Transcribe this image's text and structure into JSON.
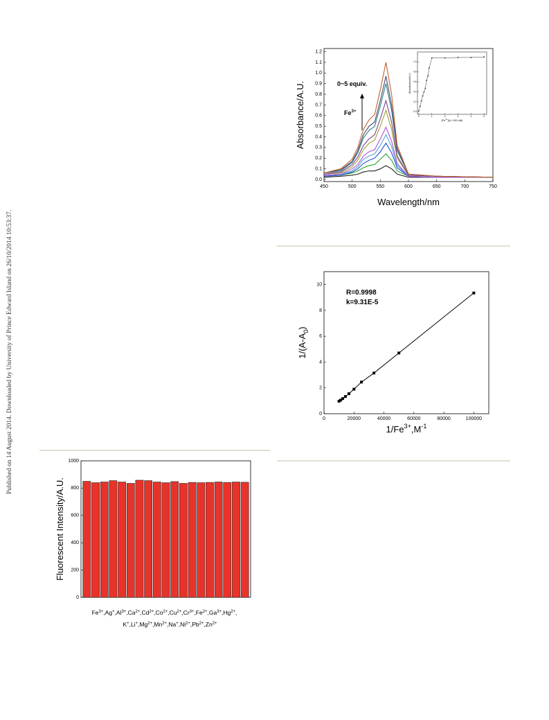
{
  "side_note": "Published on 14 August 2014. Downloaded by University of Prince Edward Island on 26/10/2014 10:53:37.",
  "chart_data": [
    {
      "type": "line",
      "x_label": [
        {
          "text": "Wavelength/nm"
        }
      ],
      "y_label": [
        {
          "text": "Absorbance/A.U."
        }
      ],
      "annotations": [
        [
          {
            "text": "0~5 equiv."
          }
        ],
        [
          {
            "text": "Fe"
          },
          {
            "text": "3+",
            "script": "super"
          }
        ]
      ],
      "x": [
        450,
        480,
        500,
        510,
        520,
        530,
        540,
        550,
        560,
        570,
        580,
        600,
        650,
        750
      ],
      "series": [
        {
          "color": "#222222",
          "values": [
            0.02,
            0.03,
            0.04,
            0.05,
            0.07,
            0.08,
            0.08,
            0.1,
            0.13,
            0.1,
            0.05,
            0.02,
            0.02,
            0.02
          ]
        },
        {
          "color": "#2ca02c",
          "values": [
            0.03,
            0.04,
            0.06,
            0.08,
            0.11,
            0.13,
            0.14,
            0.19,
            0.24,
            0.18,
            0.08,
            0.03,
            0.02,
            0.02
          ]
        },
        {
          "color": "#1f4fd1",
          "values": [
            0.03,
            0.04,
            0.07,
            0.1,
            0.15,
            0.18,
            0.2,
            0.26,
            0.34,
            0.25,
            0.11,
            0.03,
            0.02,
            0.02
          ]
        },
        {
          "color": "#4fa0d8",
          "values": [
            0.04,
            0.05,
            0.08,
            0.12,
            0.19,
            0.22,
            0.24,
            0.32,
            0.42,
            0.31,
            0.13,
            0.03,
            0.02,
            0.02
          ]
        },
        {
          "color": "#b04fd8",
          "values": [
            0.04,
            0.05,
            0.1,
            0.14,
            0.22,
            0.26,
            0.28,
            0.38,
            0.49,
            0.36,
            0.15,
            0.03,
            0.02,
            0.02
          ]
        },
        {
          "color": "#a0a030",
          "values": [
            0.05,
            0.06,
            0.12,
            0.18,
            0.28,
            0.34,
            0.37,
            0.5,
            0.65,
            0.47,
            0.2,
            0.04,
            0.03,
            0.02
          ]
        },
        {
          "color": "#7a3f8c",
          "values": [
            0.05,
            0.07,
            0.14,
            0.21,
            0.32,
            0.38,
            0.42,
            0.57,
            0.74,
            0.54,
            0.22,
            0.04,
            0.03,
            0.02
          ]
        },
        {
          "color": "#2a7f8f",
          "values": [
            0.06,
            0.08,
            0.16,
            0.25,
            0.39,
            0.46,
            0.5,
            0.69,
            0.9,
            0.65,
            0.27,
            0.05,
            0.03,
            0.02
          ]
        },
        {
          "color": "#444466",
          "values": [
            0.06,
            0.09,
            0.17,
            0.27,
            0.42,
            0.5,
            0.54,
            0.74,
            0.97,
            0.7,
            0.29,
            0.05,
            0.03,
            0.02
          ]
        },
        {
          "color": "#c0602a",
          "values": [
            0.06,
            0.1,
            0.19,
            0.3,
            0.47,
            0.56,
            0.61,
            0.84,
            1.1,
            0.8,
            0.32,
            0.05,
            0.03,
            0.02
          ]
        }
      ],
      "xlim": [
        450,
        750
      ],
      "xticks": [
        450,
        500,
        550,
        600,
        650,
        700,
        750
      ],
      "ylim": [
        -0.02,
        1.23
      ],
      "yticks": [
        {
          "value": 0,
          "label": "0.0"
        },
        0.1,
        0.2,
        0.3,
        0.4,
        0.5,
        0.6,
        0.7,
        0.8,
        0.9,
        {
          "value": 1,
          "label": "1.0"
        },
        1.1,
        1.2
      ]
    },
    {
      "type": "line",
      "markers": true,
      "x_label": [
        {
          "text": "[Fe"
        },
        {
          "text": "3+",
          "script": "super"
        },
        {
          "text": "]/(× 100 uM)"
        }
      ],
      "y_label": [
        {
          "text": "Absorbance/A.U."
        }
      ],
      "x": [
        0,
        0.1,
        0.2,
        0.3,
        0.4,
        0.5,
        0.6,
        0.7,
        0.8,
        1,
        2,
        3,
        4,
        5
      ],
      "series": [
        {
          "color": "#333333",
          "values": [
            0.02,
            0.11,
            0.22,
            0.32,
            0.4,
            0.47,
            0.63,
            0.72,
            0.88,
            1.08,
            1.08,
            1.09,
            1.09,
            1.1
          ]
        }
      ],
      "xlim": [
        -0.1,
        5.2
      ],
      "xticks": [
        0,
        1,
        2,
        3,
        4,
        5
      ],
      "ylim": [
        -0.05,
        1.2
      ],
      "yticks": [
        {
          "value": 0,
          "label": "0.0"
        },
        0.2,
        0.4,
        0.6,
        0.8,
        {
          "value": 1,
          "label": "1.0"
        }
      ]
    },
    {
      "type": "scatter",
      "x_label": [
        {
          "text": "1/Fe"
        },
        {
          "text": "3+",
          "script": "super"
        },
        {
          "text": ",M"
        },
        {
          "text": "-1",
          "script": "super"
        }
      ],
      "y_label": [
        {
          "text": "1/(A-A"
        },
        {
          "text": "0",
          "script": "sub"
        },
        {
          "text": ")"
        }
      ],
      "annotations": [
        [
          {
            "text": "R=0.9998"
          }
        ],
        [
          {
            "text": "k=9.31E-5"
          }
        ]
      ],
      "x": [
        10000,
        11111,
        12500,
        14286,
        16667,
        20000,
        25000,
        33333,
        50000,
        100000
      ],
      "values": [
        0.97,
        1.05,
        1.17,
        1.33,
        1.55,
        1.9,
        2.45,
        3.15,
        4.7,
        9.35
      ],
      "color": "#000000",
      "xlim": [
        0,
        110000
      ],
      "xticks": [
        0,
        20000,
        40000,
        60000,
        80000,
        100000
      ],
      "ylim": [
        0,
        11
      ],
      "yticks": [
        0,
        2,
        4,
        6,
        8,
        10
      ]
    },
    {
      "type": "bar",
      "y_label": [
        {
          "text": "Fluorescent Intensity/A.U."
        }
      ],
      "x_label_lines": [
        "Fe3+,Ag+,Al3+,Ca2+,Cd2+,Co2+,Cu2+,Cr3+,Fe2+,Ga3+,Hg2+,",
        "K+,Li+,Mg2+,Mn2+,Na+,Ni2+,Pb2+,Zn2+"
      ],
      "values": [
        850,
        840,
        845,
        855,
        845,
        835,
        858,
        855,
        845,
        840,
        848,
        835,
        842,
        840,
        842,
        845,
        842,
        845,
        843
      ],
      "color": "#e8332a",
      "ylim": [
        0,
        1000
      ],
      "yticks": [
        0,
        200,
        400,
        600,
        800,
        1000
      ]
    }
  ]
}
